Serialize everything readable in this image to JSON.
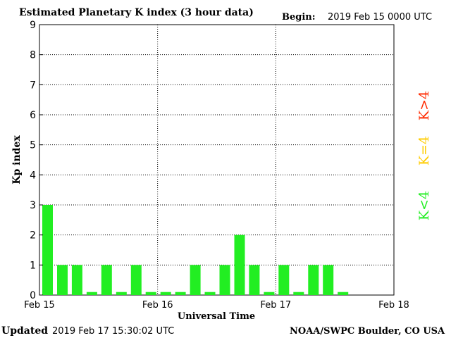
{
  "header": {
    "title": "Estimated Planetary K index (3 hour data)",
    "begin_label": "Begin:",
    "begin_value": "2019 Feb 15 0000 UTC"
  },
  "footer": {
    "updated_label": "Updated",
    "updated_value": "2019 Feb 17 15:30:02 UTC",
    "credit": "NOAA/SWPC Boulder, CO USA"
  },
  "legend": {
    "items": [
      {
        "label": "K>4",
        "color": "#ff2a00"
      },
      {
        "label": "K=4",
        "color": "#ffcc00"
      },
      {
        "label": "K<4",
        "color": "#22ee22"
      }
    ],
    "placement": "right"
  },
  "chart_data": {
    "type": "bar",
    "title": "Estimated Planetary K index (3 hour data)",
    "xlabel": "Universal Time",
    "ylabel": "Kp index",
    "ylim": [
      0,
      9
    ],
    "yticks": [
      "0",
      "1",
      "2",
      "3",
      "4",
      "5",
      "6",
      "7",
      "8",
      "9"
    ],
    "xticks": [
      "Feb 15",
      "Feb 16",
      "Feb 17",
      "Feb 18"
    ],
    "bars_per_day": 8,
    "grid": true,
    "bar_color": "#22ee22",
    "values": [
      3,
      1,
      1,
      0.1,
      1,
      0.1,
      1,
      0.1,
      0.1,
      0.1,
      1,
      0.1,
      1,
      2,
      1,
      0.1,
      1,
      0.1,
      1,
      1,
      0.1
    ]
  }
}
